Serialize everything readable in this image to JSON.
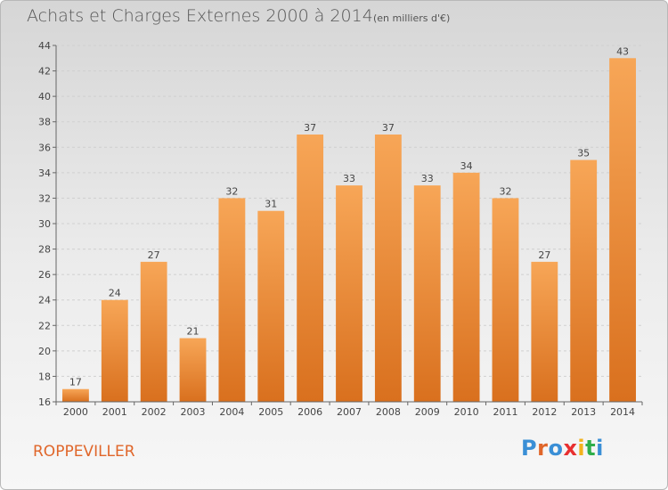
{
  "header": {
    "title": "Achats et Charges Externes 2000 à 2014",
    "subtitle": "(en milliers d'€)"
  },
  "footer": {
    "town": "ROPPEVILLER",
    "logo_text": "Proxiti",
    "logo_colors": [
      "#3a8fd6",
      "#e0662a",
      "#3a8fd6",
      "#e83030",
      "#f2b21c",
      "#2fae4a",
      "#3a8fd6"
    ]
  },
  "colors": {
    "bar_light": "#f7a657",
    "bar_dark": "#d9701e",
    "axis": "#666666",
    "grid": "#d0d0d0",
    "town": "#e0662a"
  },
  "chart_data": {
    "type": "bar",
    "title": "Achats et Charges Externes 2000 à 2014",
    "subtitle": "(en milliers d'€)",
    "categories": [
      "2000",
      "2001",
      "2002",
      "2003",
      "2004",
      "2005",
      "2006",
      "2007",
      "2008",
      "2009",
      "2010",
      "2011",
      "2012",
      "2013",
      "2014"
    ],
    "values": [
      17,
      24,
      27,
      21,
      32,
      31,
      37,
      33,
      37,
      33,
      34,
      32,
      27,
      35,
      43
    ],
    "ylim": [
      16,
      44
    ],
    "yticks": [
      16,
      18,
      20,
      22,
      24,
      26,
      28,
      30,
      32,
      34,
      36,
      38,
      40,
      42,
      44
    ],
    "grid": true,
    "legend": "none"
  }
}
